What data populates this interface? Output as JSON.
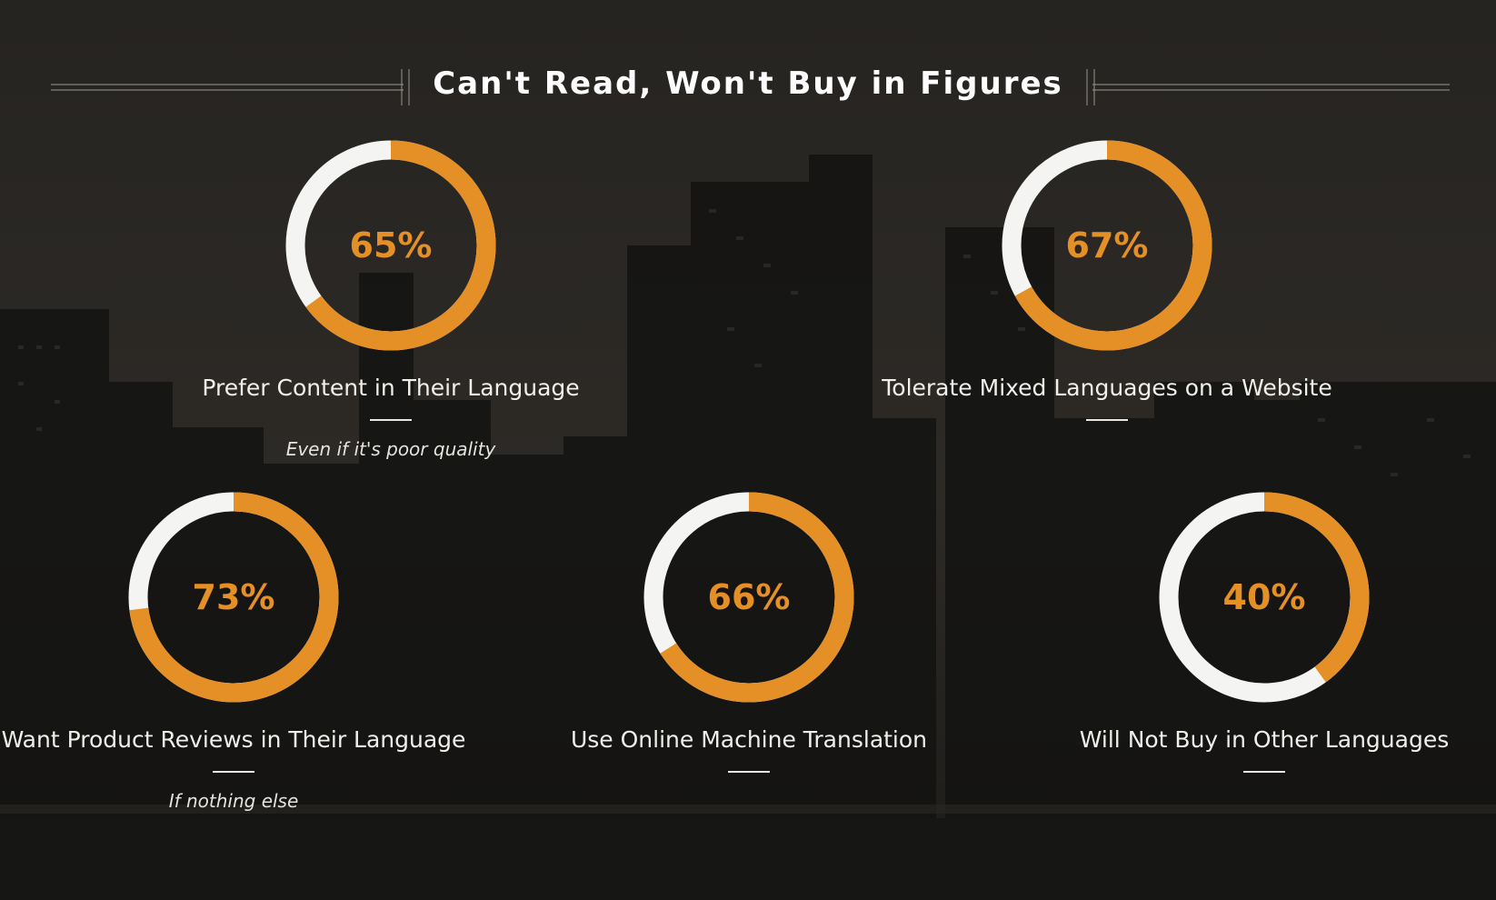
{
  "title": "Can't Read, Won't Buy in Figures",
  "colors": {
    "accent": "#e58f27",
    "track": "#f4f4f2",
    "background": "#1b1a18"
  },
  "chart_data": {
    "type": "donut",
    "title": "Can't Read, Won't Buy in Figures",
    "unit": "%",
    "items": [
      {
        "value": 65,
        "value_label": "65%",
        "label": "Prefer Content in Their Language",
        "note": "Even if it's poor quality"
      },
      {
        "value": 67,
        "value_label": "67%",
        "label": "Tolerate Mixed Languages on a Website",
        "note": ""
      },
      {
        "value": 73,
        "value_label": "73%",
        "label": "Want Product Reviews in Their Language",
        "note": "If nothing else"
      },
      {
        "value": 66,
        "value_label": "66%",
        "label": "Use Online Machine Translation",
        "note": ""
      },
      {
        "value": 40,
        "value_label": "40%",
        "label": "Will Not Buy in Other Languages",
        "note": ""
      }
    ]
  }
}
